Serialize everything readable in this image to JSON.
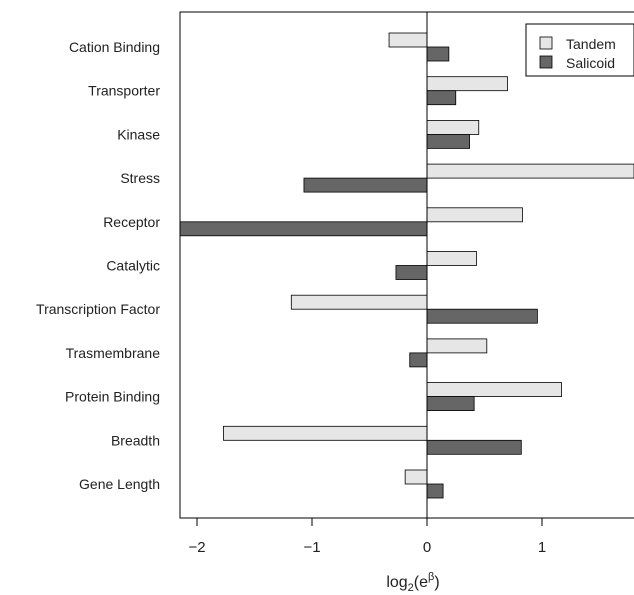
{
  "chart_data": {
    "type": "bar",
    "orientation": "horizontal",
    "categories": [
      "Cation Binding",
      "Transporter",
      "Kinase",
      "Stress",
      "Receptor",
      "Catalytic",
      "Transcription Factor",
      "Trasmembrane",
      "Protein Binding",
      "Breadth",
      "Gene Length"
    ],
    "series": [
      {
        "name": "Tandem",
        "color": "#e6e6e6",
        "values": [
          -0.33,
          0.7,
          0.45,
          1.8,
          0.83,
          0.43,
          -1.18,
          0.52,
          1.17,
          -1.77,
          -0.19
        ]
      },
      {
        "name": "Salicoid",
        "color": "#666666",
        "values": [
          0.19,
          0.25,
          0.37,
          -1.07,
          -2.15,
          -0.27,
          0.96,
          -0.15,
          0.41,
          0.82,
          0.14
        ]
      }
    ],
    "xlim": [
      -2.15,
      1.8
    ],
    "xticks": [
      -2,
      -1,
      0,
      1
    ],
    "xtick_labels": [
      "−2",
      "−1",
      "0",
      "1"
    ],
    "xlabel": "log",
    "xlabel_sub": "2",
    "xlabel_rest": "(e",
    "xlabel_sup": "β",
    "xlabel_end": ")",
    "legend_position": "top-right",
    "grid": false
  }
}
